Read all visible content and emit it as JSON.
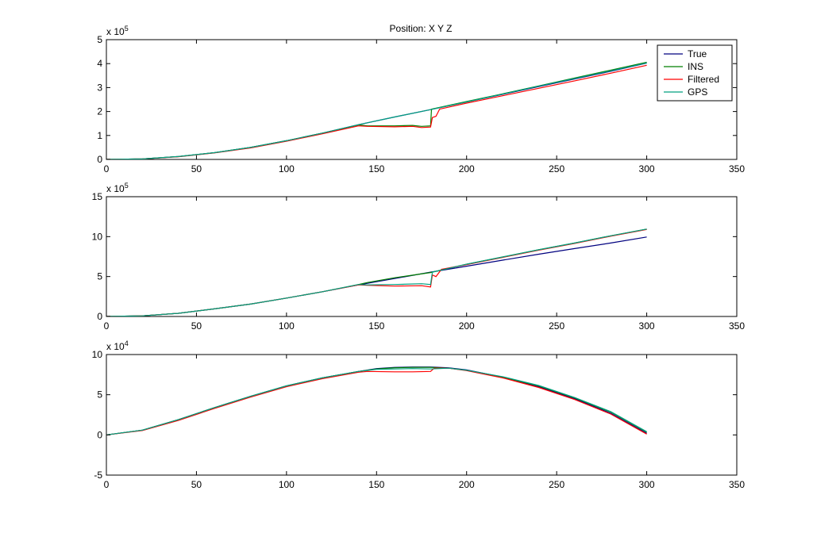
{
  "figure": {
    "title": "Position: X Y Z"
  },
  "legend": {
    "placement": "top-right",
    "entries": [
      {
        "label": "True",
        "color": "#00007f"
      },
      {
        "label": "INS",
        "color": "#007f00"
      },
      {
        "label": "Filtered",
        "color": "#ff0000"
      },
      {
        "label": "GPS",
        "color": "#00a080"
      }
    ]
  },
  "chart_data": [
    {
      "type": "line",
      "title": "Position: X Y Z",
      "xlabel": "",
      "ylabel": "",
      "xlim": [
        0,
        350
      ],
      "ylim": [
        0,
        5
      ],
      "x_ticks": [
        "0",
        "50",
        "100",
        "150",
        "200",
        "250",
        "300",
        "350"
      ],
      "y_ticks": [
        "0",
        "1",
        "2",
        "3",
        "4",
        "5"
      ],
      "y_multiplier": {
        "base": "x 10",
        "exponent": "5"
      },
      "grid": false,
      "series": [
        {
          "name": "True",
          "color": "#00007f",
          "x": [
            0,
            20,
            40,
            60,
            80,
            100,
            120,
            140,
            160,
            180,
            200,
            220,
            240,
            260,
            280,
            300
          ],
          "y": [
            0,
            0.02,
            0.12,
            0.28,
            0.5,
            0.78,
            1.1,
            1.45,
            1.77,
            2.08,
            2.4,
            2.72,
            3.04,
            3.36,
            3.68,
            4.02
          ]
        },
        {
          "name": "INS",
          "color": "#007f00",
          "x": [
            0,
            20,
            40,
            60,
            80,
            100,
            120,
            140,
            145,
            150,
            160,
            170,
            175,
            180,
            180.5,
            200,
            220,
            240,
            260,
            280,
            300
          ],
          "y": [
            0,
            0.02,
            0.12,
            0.28,
            0.5,
            0.78,
            1.1,
            1.44,
            1.4,
            1.4,
            1.4,
            1.42,
            1.38,
            1.4,
            2.1,
            2.42,
            2.74,
            3.07,
            3.4,
            3.73,
            4.06
          ]
        },
        {
          "name": "Filtered",
          "color": "#ff0000",
          "x": [
            0,
            20,
            40,
            60,
            80,
            100,
            120,
            140,
            145,
            160,
            170,
            175,
            180,
            181,
            183,
            185,
            200,
            220,
            240,
            260,
            280,
            300
          ],
          "y": [
            0,
            0.02,
            0.11,
            0.27,
            0.48,
            0.76,
            1.07,
            1.4,
            1.38,
            1.36,
            1.38,
            1.33,
            1.35,
            1.75,
            1.8,
            2.1,
            2.35,
            2.66,
            2.97,
            3.28,
            3.6,
            3.93
          ]
        },
        {
          "name": "GPS",
          "color": "#00a080",
          "x": [
            0,
            20,
            40,
            60,
            80,
            100,
            120,
            140,
            160,
            180,
            200,
            220,
            240,
            260,
            280,
            300
          ],
          "y": [
            0,
            0.02,
            0.12,
            0.28,
            0.5,
            0.78,
            1.1,
            1.45,
            1.77,
            2.08,
            2.4,
            2.73,
            3.06,
            3.38,
            3.7,
            4.03
          ]
        }
      ]
    },
    {
      "type": "line",
      "xlabel": "",
      "ylabel": "",
      "xlim": [
        0,
        350
      ],
      "ylim": [
        0,
        15
      ],
      "x_ticks": [
        "0",
        "50",
        "100",
        "150",
        "200",
        "250",
        "300",
        "350"
      ],
      "y_ticks": [
        "0",
        "5",
        "10",
        "15"
      ],
      "y_multiplier": {
        "base": "x 10",
        "exponent": "5"
      },
      "grid": false,
      "series": [
        {
          "name": "True",
          "color": "#00007f",
          "x": [
            0,
            20,
            40,
            60,
            80,
            100,
            120,
            140,
            160,
            180,
            200,
            220,
            240,
            260,
            280,
            300
          ],
          "y": [
            0,
            0.08,
            0.4,
            0.95,
            1.55,
            2.3,
            3.1,
            3.95,
            4.75,
            5.55,
            6.3,
            7.05,
            7.8,
            8.5,
            9.2,
            9.95
          ]
        },
        {
          "name": "INS",
          "color": "#007f00",
          "x": [
            0,
            20,
            40,
            60,
            80,
            100,
            120,
            140,
            145,
            160,
            180,
            200,
            220,
            240,
            260,
            280,
            300
          ],
          "y": [
            0,
            0.08,
            0.4,
            0.95,
            1.55,
            2.3,
            3.1,
            4.0,
            4.25,
            4.85,
            5.5,
            6.55,
            7.45,
            8.35,
            9.2,
            10.1,
            10.95
          ]
        },
        {
          "name": "Filtered",
          "color": "#ff0000",
          "x": [
            0,
            20,
            40,
            60,
            80,
            100,
            120,
            140,
            145,
            160,
            175,
            180,
            181,
            183,
            186,
            200,
            220,
            240,
            260,
            280,
            300
          ],
          "y": [
            0,
            0.08,
            0.4,
            0.95,
            1.55,
            2.3,
            3.1,
            3.95,
            3.9,
            3.8,
            3.85,
            3.7,
            5.2,
            5.0,
            5.9,
            6.5,
            7.4,
            8.3,
            9.15,
            10.05,
            10.9
          ]
        },
        {
          "name": "GPS",
          "color": "#00a080",
          "x": [
            0,
            20,
            40,
            60,
            80,
            100,
            120,
            140,
            145,
            160,
            175,
            180,
            181,
            200,
            220,
            240,
            260,
            280,
            300
          ],
          "y": [
            0,
            0.08,
            0.4,
            0.95,
            1.55,
            2.3,
            3.1,
            4.0,
            3.95,
            4.0,
            4.1,
            4.0,
            5.55,
            6.55,
            7.45,
            8.35,
            9.2,
            10.1,
            10.95
          ]
        }
      ]
    },
    {
      "type": "line",
      "xlabel": "",
      "ylabel": "",
      "xlim": [
        0,
        350
      ],
      "ylim": [
        -5,
        10
      ],
      "x_ticks": [
        "0",
        "50",
        "100",
        "150",
        "200",
        "250",
        "300",
        "350"
      ],
      "y_ticks": [
        "-5",
        "0",
        "5",
        "10"
      ],
      "y_multiplier": {
        "base": "x 10",
        "exponent": "4"
      },
      "grid": false,
      "series": [
        {
          "name": "True",
          "color": "#00007f",
          "x": [
            0,
            20,
            40,
            60,
            80,
            100,
            120,
            140,
            150,
            160,
            170,
            180,
            190,
            200,
            220,
            240,
            260,
            280,
            300
          ],
          "y": [
            0,
            0.6,
            1.9,
            3.4,
            4.8,
            6.1,
            7.1,
            7.9,
            8.25,
            8.4,
            8.45,
            8.45,
            8.35,
            8.1,
            7.2,
            6.0,
            4.5,
            2.7,
            0.2
          ]
        },
        {
          "name": "INS",
          "color": "#007f00",
          "x": [
            0,
            20,
            40,
            60,
            80,
            100,
            120,
            140,
            150,
            160,
            170,
            180,
            190,
            200,
            220,
            240,
            260,
            280,
            300
          ],
          "y": [
            0,
            0.6,
            1.9,
            3.4,
            4.8,
            6.1,
            7.1,
            7.9,
            8.2,
            8.35,
            8.4,
            8.4,
            8.3,
            8.05,
            7.2,
            6.1,
            4.6,
            2.85,
            0.35
          ]
        },
        {
          "name": "Filtered",
          "color": "#ff0000",
          "x": [
            0,
            20,
            40,
            60,
            80,
            100,
            120,
            140,
            145,
            160,
            170,
            180,
            182,
            190,
            200,
            220,
            240,
            260,
            280,
            300
          ],
          "y": [
            0,
            0.55,
            1.8,
            3.3,
            4.7,
            6.0,
            7.0,
            7.8,
            7.9,
            7.85,
            7.85,
            7.9,
            8.3,
            8.3,
            8.0,
            7.1,
            5.9,
            4.4,
            2.6,
            0.1
          ]
        },
        {
          "name": "GPS",
          "color": "#00a080",
          "x": [
            0,
            20,
            40,
            60,
            80,
            100,
            120,
            140,
            150,
            160,
            170,
            180,
            190,
            200,
            220,
            240,
            260,
            280,
            300
          ],
          "y": [
            0,
            0.6,
            1.9,
            3.4,
            4.8,
            6.1,
            7.1,
            7.9,
            8.15,
            8.2,
            8.25,
            8.2,
            8.3,
            8.05,
            7.25,
            6.15,
            4.65,
            2.9,
            0.4
          ]
        }
      ]
    }
  ]
}
